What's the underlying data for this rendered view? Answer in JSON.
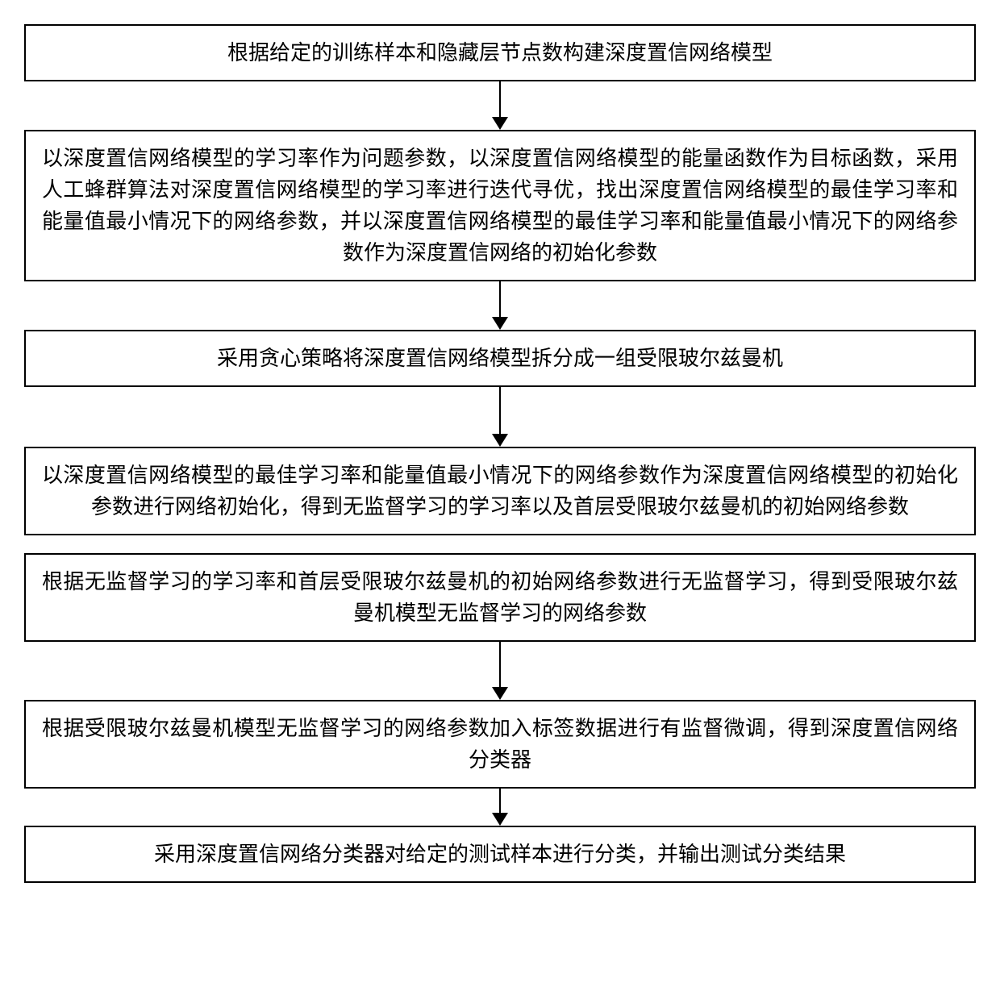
{
  "flowchart": {
    "type": "flowchart",
    "direction": "vertical",
    "background_color": "#ffffff",
    "box_border_color": "#000000",
    "box_border_width": 2,
    "text_color": "#000000",
    "font_size": 26,
    "font_family": "SimSun",
    "arrow_color": "#000000",
    "arrow_line_width": 2,
    "arrow_head_width": 20,
    "arrow_head_height": 16,
    "container_width": 1180,
    "steps": [
      {
        "id": "step-1",
        "text": "根据给定的训练样本和隐藏层节点数构建深度置信网络模型",
        "arrow_after": true,
        "arrow_length": 44
      },
      {
        "id": "step-2",
        "text": "以深度置信网络模型的学习率作为问题参数，以深度置信网络模型的能量函数作为目标函数，采用人工蜂群算法对深度置信网络模型的学习率进行迭代寻优，找出深度置信网络模型的最佳学习率和能量值最小情况下的网络参数，并以深度置信网络模型的最佳学习率和能量值最小情况下的网络参数作为深度置信网络的初始化参数",
        "arrow_after": true,
        "arrow_length": 44,
        "justify": true
      },
      {
        "id": "step-3",
        "text": "采用贪心策略将深度置信网络模型拆分成一组受限玻尔兹曼机",
        "arrow_after": true,
        "arrow_length": 58
      },
      {
        "id": "step-4",
        "text": "以深度置信网络模型的最佳学习率和能量值最小情况下的网络参数作为深度置信网络模型的初始化参数进行网络初始化，得到无监督学习的学习率以及首层受限玻尔兹曼机的初始网络参数",
        "arrow_after": false,
        "gap_after": 22,
        "justify": true
      },
      {
        "id": "step-5",
        "text": "根据无监督学习的学习率和首层受限玻尔兹曼机的初始网络参数进行无监督学习，得到受限玻尔兹曼机模型无监督学习的网络参数",
        "arrow_after": true,
        "arrow_length": 56,
        "justify": true
      },
      {
        "id": "step-6",
        "text": "根据受限玻尔兹曼机模型无监督学习的网络参数加入标签数据进行有监督微调，得到深度置信网络分类器",
        "arrow_after": true,
        "arrow_length": 30,
        "justify": true
      },
      {
        "id": "step-7",
        "text": "采用深度置信网络分类器对给定的测试样本进行分类，并输出测试分类结果",
        "arrow_after": false
      }
    ]
  }
}
